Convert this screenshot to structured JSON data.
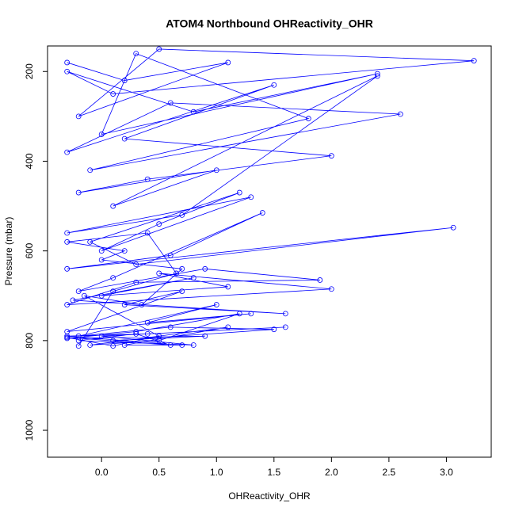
{
  "chart_data": {
    "type": "line",
    "title": "ATOM4 Northbound OHReactivity_OHR",
    "x_label": "OHReactivity_OHR",
    "y_label": "Pressure (mbar)",
    "xlim": [
      -0.47,
      3.39
    ],
    "ylim": [
      1060,
      143
    ],
    "xticks": [
      {
        "value": 0,
        "label": "0.0"
      },
      0.5,
      {
        "value": 1,
        "label": "1.0"
      },
      1.5,
      {
        "value": 2,
        "label": "2.0"
      },
      2.5,
      {
        "value": 3,
        "label": "3.0"
      }
    ],
    "yticks": [
      200,
      400,
      600,
      800,
      1000
    ],
    "series": [
      {
        "color": "#0000ff",
        "x": [
          -0.3,
          0.2,
          1.1,
          -0.2,
          0.5,
          3.24,
          0.1,
          -0.3,
          0.8,
          2.4,
          0.0,
          0.3,
          1.8,
          -0.1,
          2.6,
          0.6,
          -0.3,
          1.5,
          0.2,
          2.0,
          0.4,
          -0.2,
          1.0,
          0.1,
          2.4,
          0.7,
          -0.3,
          1.3,
          0.0,
          0.5,
          1.2,
          -0.1,
          0.3,
          3.06,
          -0.3,
          0.6,
          1.4,
          0.1,
          -0.2,
          0.9,
          1.9,
          0.3,
          -0.3,
          2.0,
          0.5,
          1.1,
          0.0,
          0.8,
          -0.25,
          1.6,
          0.2,
          0.7,
          -0.3,
          1.3,
          0.4,
          1.0,
          -0.2,
          0.6,
          1.5,
          0.1,
          0.9,
          -0.3,
          0.3,
          1.2,
          0.5,
          -0.1,
          1.1,
          0.2,
          0.7,
          -0.3,
          0.4,
          1.6,
          0.0,
          0.8,
          -0.2,
          0.3,
          0.6,
          -0.3,
          0.1,
          0.5,
          -0.15,
          0.35,
          0.7,
          0.0,
          0.2,
          -0.3,
          0.4,
          0.65,
          0.1,
          -0.2
        ],
        "values": [
          180,
          220,
          180,
          300,
          150,
          176,
          250,
          200,
          290,
          205,
          340,
          160,
          305,
          420,
          295,
          270,
          380,
          230,
          350,
          388,
          440,
          470,
          420,
          500,
          210,
          520,
          560,
          480,
          600,
          540,
          470,
          580,
          630,
          548,
          640,
          610,
          515,
          660,
          690,
          640,
          665,
          670,
          720,
          685,
          650,
          680,
          700,
          660,
          710,
          740,
          720,
          690,
          780,
          740,
          760,
          720,
          790,
          770,
          775,
          800,
          790,
          795,
          780,
          740,
          800,
          810,
          770,
          810,
          810,
          790,
          785,
          770,
          790,
          810,
          800,
          785,
          810,
          793,
          812,
          790,
          700,
          720,
          640,
          620,
          600,
          580,
          560,
          650,
          690,
          812
        ]
      }
    ]
  }
}
